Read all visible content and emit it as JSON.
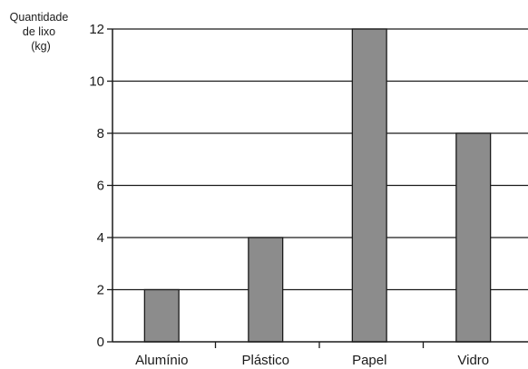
{
  "chart_data": {
    "type": "bar",
    "categories": [
      "Alumínio",
      "Plástico",
      "Papel",
      "Vidro"
    ],
    "values": [
      2,
      4,
      12,
      8
    ],
    "title": "",
    "xlabel": "",
    "ylabel_lines": [
      "Quantidade",
      "de lixo",
      "(kg)"
    ],
    "ylim": [
      0,
      12
    ],
    "yticks": [
      0,
      2,
      4,
      6,
      8,
      10,
      12
    ],
    "grid": true,
    "bar_color": "#8c8c8c",
    "edge_color": "#1a1a1a"
  }
}
